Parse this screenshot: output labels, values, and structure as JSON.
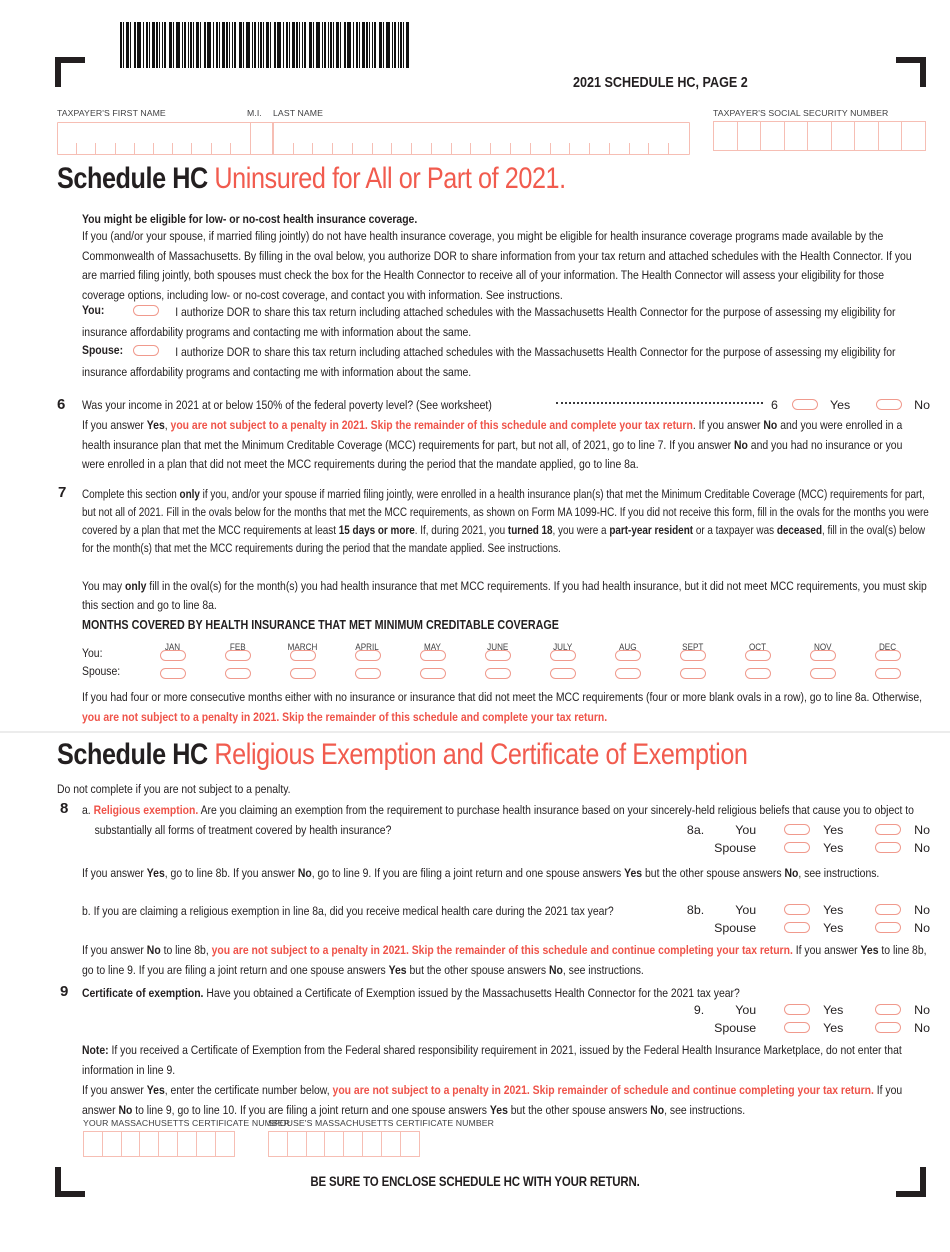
{
  "page": {
    "title": "2021 SCHEDULE HC, PAGE 2",
    "footer": "BE SURE TO ENCLOSE SCHEDULE HC WITH YOUR RETURN."
  },
  "colors": {
    "ink": "#231f20",
    "red_text": "#ef5349",
    "heading_red": "#f15b4e",
    "oval_outline": "#f09a8d",
    "field_outline": "#f6beb4"
  },
  "icons": {
    "barcode": "barcode",
    "corner_marks": "registration-corner-marks",
    "oval": "fill-in-oval"
  },
  "fields": {
    "first_name_label": "TAXPAYER'S FIRST NAME",
    "mi_label": "M.I.",
    "last_name_label": "LAST NAME",
    "ssn_label": "TAXPAYER'S SOCIAL SECURITY NUMBER",
    "your_cert_label": "YOUR MASSACHUSETTS CERTIFICATE NUMBER",
    "spouse_cert_label": "SPOUSE'S MASSACHUSETTS CERTIFICATE NUMBER"
  },
  "answers": {
    "you": "You",
    "spouse": "Spouse",
    "yes": "Yes",
    "no": "No",
    "you_c": "You:",
    "spouse_c": "Spouse:"
  },
  "section1": {
    "title_black": "Schedule HC",
    "title_red": "Uninsured for All or Part of 2021.",
    "eligible_heading": "You might be eligible for low- or no-cost health insurance coverage.",
    "intro": "If you (and/or your spouse, if married filing jointly) do not have health insurance coverage, you might be eligible for health insurance coverage programs made available by the Commonwealth of Massachusetts. By filling in the oval below, you authorize DOR to share information from your tax return and attached schedules with the Health Connector. If you are married filing jointly, both spouses must check the box for the Health Connector to receive all of your information. The Health Connector will assess your eligibility for those coverage options, including low- or no-cost coverage, and contact you with information. See instructions.",
    "authorize_text": "I authorize DOR to share this tax return including attached schedules with the Massachusetts Health Connector for the purpose of assessing my eligibility for insurance affordability programs and contacting me with information about the same."
  },
  "line6": {
    "number": "6",
    "question": "Was your income in 2021 at or below 150% of the federal poverty level? (See worksheet)",
    "ref": "6",
    "after": [
      {
        "t": "If you answer "
      },
      {
        "t": "Yes",
        "s": "b"
      },
      {
        "t": ", "
      },
      {
        "t": "you are not subject to a penalty in 2021. Skip the remainder of this schedule and complete your tax return",
        "s": "r"
      },
      {
        "t": ". If you answer "
      },
      {
        "t": "No",
        "s": "b"
      },
      {
        "t": " and you were enrolled in a health insurance plan that met the Minimum Creditable Coverage (MCC) requirements for part, but not all, of 2021, go to line 7. If you answer "
      },
      {
        "t": "No",
        "s": "b"
      },
      {
        "t": " and you had no insurance or you were enrolled in a plan that did not meet the MCC requirements during the period that the mandate applied, go to line 8a."
      }
    ]
  },
  "line7": {
    "number": "7",
    "p1": [
      {
        "t": "Complete this section "
      },
      {
        "t": "only",
        "s": "b"
      },
      {
        "t": " if you, and/or your spouse if married filing jointly, were enrolled in a health insurance plan(s) that met the Minimum Creditable Coverage (MCC) requirements for part, but not all of 2021. Fill in the ovals below for the months that met the MCC requirements, as shown on Form MA 1099-HC. If you did not receive this form, fill in the ovals for the months you were covered by a plan that met the MCC requirements at least "
      },
      {
        "t": "15 days or more",
        "s": "b"
      },
      {
        "t": ". If, during 2021, you "
      },
      {
        "t": "turned 18",
        "s": "b"
      },
      {
        "t": ", you were a "
      },
      {
        "t": "part-year resident",
        "s": "b"
      },
      {
        "t": " or a taxpayer was "
      },
      {
        "t": "deceased",
        "s": "b"
      },
      {
        "t": ", fill in the oval(s) below for the month(s) that met the MCC requirements during the period that the mandate applied. See instructions."
      }
    ],
    "p2": [
      {
        "t": "You may "
      },
      {
        "t": "only",
        "s": "b"
      },
      {
        "t": " fill in the oval(s) for the month(s) you had health insurance that met MCC requirements. If you had health insurance, but it did not meet MCC requirements, you must skip this section and go to line 8a."
      }
    ]
  },
  "months": {
    "heading": "MONTHS COVERED BY HEALTH INSURANCE THAT MET MINIMUM CREDITABLE COVERAGE",
    "labels": [
      "JAN",
      "FEB",
      "MARCH",
      "APRIL",
      "MAY",
      "JUNE",
      "JULY",
      "AUG",
      "SEPT",
      "OCT",
      "NOV",
      "DEC"
    ],
    "after": [
      {
        "t": "If you had four or more consecutive months either with no insurance or insurance that did not meet the MCC requirements (four or more blank ovals in a row), go to line 8a. Otherwise, "
      },
      {
        "t": "you are not subject to a penalty in 2021. Skip the remainder of this schedule and complete your tax return.",
        "s": "r"
      }
    ]
  },
  "section2": {
    "title_black": "Schedule HC",
    "title_red": "Religious Exemption and Certificate of Exemption",
    "subnote": "Do not complete if you are not subject to a penalty."
  },
  "line8": {
    "number": "8",
    "a_question": [
      {
        "t": "a. "
      },
      {
        "t": "Religious exemption.",
        "s": "r"
      },
      {
        "t": " Are you claiming an exemption from the requirement to purchase health insurance based on your sincerely-held religious beliefs that cause you to object to substantially all forms of treatment covered by health insurance?"
      }
    ],
    "a_ref": "8a.",
    "p_after_a": [
      {
        "t": "If you answer "
      },
      {
        "t": "Yes",
        "s": "b"
      },
      {
        "t": ", go to line 8b. If you answer "
      },
      {
        "t": "No",
        "s": "b"
      },
      {
        "t": ", go to line 9. If you are filing a joint return and one spouse answers "
      },
      {
        "t": "Yes",
        "s": "b"
      },
      {
        "t": " but the other spouse answers "
      },
      {
        "t": "No",
        "s": "b"
      },
      {
        "t": ", see instructions."
      }
    ],
    "b_question": "b. If you are claiming a religious exemption in line 8a, did you receive medical health care during the 2021 tax year?",
    "b_ref": "8b.",
    "p_after_b": [
      {
        "t": "If you answer "
      },
      {
        "t": "No",
        "s": "b"
      },
      {
        "t": " to line 8b, "
      },
      {
        "t": "you are not subject to a penalty in 2021. Skip the remainder of this schedule and continue completing your tax return.",
        "s": "r"
      },
      {
        "t": " If you answer "
      },
      {
        "t": "Yes",
        "s": "b"
      },
      {
        "t": " to line 8b, go to line 9. If you are filing a joint return and one spouse answers "
      },
      {
        "t": "Yes",
        "s": "b"
      },
      {
        "t": " but the other spouse answers "
      },
      {
        "t": "No",
        "s": "b"
      },
      {
        "t": ", see instructions."
      }
    ]
  },
  "line9": {
    "number": "9",
    "question": [
      {
        "t": "Certificate of exemption.",
        "s": "b"
      },
      {
        "t": " Have you obtained a Certificate of Exemption issued by the Massachusetts Health Connector for the 2021 tax year?"
      }
    ],
    "ref": "9.",
    "note": [
      {
        "t": "Note:",
        "s": "b"
      },
      {
        "t": " If you received a Certificate of Exemption from the Federal shared responsibility requirement in 2021, issued by the Federal Health Insurance Marketplace, do not enter that information in line 9."
      }
    ],
    "cert_instructions": [
      {
        "t": "If you answer "
      },
      {
        "t": "Yes",
        "s": "b"
      },
      {
        "t": ", enter the certificate number below, "
      },
      {
        "t": "you are not subject to a penalty in 2021. Skip remainder of schedule and continue completing your tax return.",
        "s": "r"
      },
      {
        "t": " If you answer "
      },
      {
        "t": "No",
        "s": "b"
      },
      {
        "t": " to line 9, go to line 10. If you are filing a joint return and one spouse answers "
      },
      {
        "t": "Yes",
        "s": "b"
      },
      {
        "t": " but the other spouse answers "
      },
      {
        "t": "No",
        "s": "b"
      },
      {
        "t": ", see instructions."
      }
    ]
  }
}
